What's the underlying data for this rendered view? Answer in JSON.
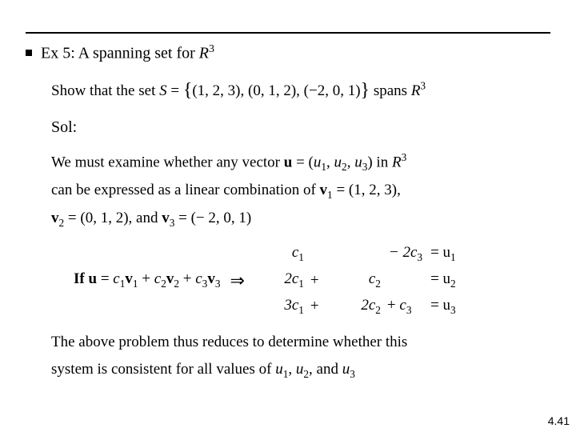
{
  "page_number": "4.41",
  "title": {
    "prefix": "Ex 5: A spanning set for ",
    "space": "R",
    "exponent": "3"
  },
  "show_line": {
    "pre": "Show that the set ",
    "S": "S",
    "eq": " = ",
    "set": "{(1, 2, 3), (0, 1, 2), (−2, 0, 1)}",
    "post1": " spans ",
    "space": "R",
    "exponent": "3"
  },
  "sol_label": "Sol:",
  "para1": {
    "l1a": "We must examine whether any vector ",
    "u": "u",
    "l1b": " = (",
    "u1": "u",
    "s1": "1",
    "c1": ", ",
    "u2": "u",
    "s2": "2",
    "c2": ", ",
    "u3": "u",
    "s3": "3",
    "l1c": ") in ",
    "space": "R",
    "exp": "3",
    "l2a": "can be expressed as a linear combination of ",
    "v1": "v",
    "v1s": "1",
    "l2b": " = (1, 2, 3),",
    "v2": "v",
    "v2s": "2",
    "l3a": " = (0, 1, 2), and ",
    "v3": "v",
    "v3s": "3",
    "l3b": " = (− 2, 0, 1)"
  },
  "if_line": {
    "if": "If ",
    "u": "u",
    "eq": " = ",
    "c1": "c",
    "c1s": "1",
    "v1": "v",
    "v1s": "1",
    "p1": " + ",
    "c2": "c",
    "c2s": "2",
    "v2": "v",
    "v2s": "2",
    "p2": " + ",
    "c3": "c",
    "c3s": "3",
    "v3": "v",
    "v3s": "3",
    "implies": "⇒"
  },
  "system": {
    "r1": {
      "a": "c",
      "as": "1",
      "b": "− 2c",
      "bs": "3",
      "eq": "= u",
      "us": "1"
    },
    "r2": {
      "a": "2c",
      "as": "1",
      "b": "c",
      "bs": "2",
      "eq": "= u",
      "us": "2"
    },
    "r3": {
      "a": "3c",
      "as": "1",
      "b": "2c",
      "bs": "2",
      "c": "c",
      "cs": "3",
      "eq": "= u",
      "us": "3"
    }
  },
  "para2": {
    "l1": "The above problem thus reduces to determine whether this",
    "l2a": "system is consistent for all values of ",
    "u1": "u",
    "s1": "1",
    "c1": ", ",
    "u2": "u",
    "s2": "2",
    "c2": ", and ",
    "u3": "u",
    "s3": "3"
  }
}
